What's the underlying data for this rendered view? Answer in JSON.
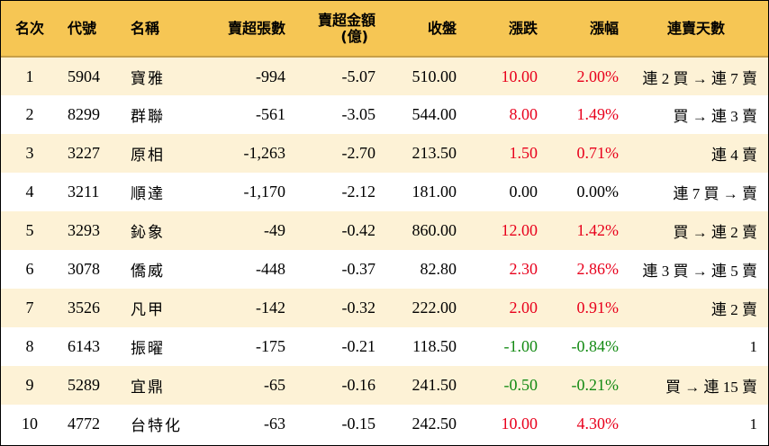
{
  "headers": {
    "rank": "名次",
    "code": "代號",
    "name": "名稱",
    "net_sell_lots": "賣超張數",
    "net_sell_amount_line1": "賣超金額",
    "net_sell_amount_line2": "(億)",
    "close": "收盤",
    "change": "漲跌",
    "change_pct": "漲幅",
    "streak": "連賣天數"
  },
  "rows": [
    {
      "rank": "1",
      "code": "5904",
      "name": "寶雅",
      "lots": "-994",
      "amount": "-5.07",
      "close": "510.00",
      "change": "10.00",
      "pct": "2.00%",
      "streak": "連 2 買 → 連 7 賣"
    },
    {
      "rank": "2",
      "code": "8299",
      "name": "群聯",
      "lots": "-561",
      "amount": "-3.05",
      "close": "544.00",
      "change": "8.00",
      "pct": "1.49%",
      "streak": "買 → 連 3 賣"
    },
    {
      "rank": "3",
      "code": "3227",
      "name": "原相",
      "lots": "-1,263",
      "amount": "-2.70",
      "close": "213.50",
      "change": "1.50",
      "pct": "0.71%",
      "streak": "連 4 賣"
    },
    {
      "rank": "4",
      "code": "3211",
      "name": "順達",
      "lots": "-1,170",
      "amount": "-2.12",
      "close": "181.00",
      "change": "0.00",
      "pct": "0.00%",
      "streak": "連 7 買 → 賣"
    },
    {
      "rank": "5",
      "code": "3293",
      "name": "鈊象",
      "lots": "-49",
      "amount": "-0.42",
      "close": "860.00",
      "change": "12.00",
      "pct": "1.42%",
      "streak": "買 → 連 2 賣"
    },
    {
      "rank": "6",
      "code": "3078",
      "name": "僑威",
      "lots": "-448",
      "amount": "-0.37",
      "close": "82.80",
      "change": "2.30",
      "pct": "2.86%",
      "streak": "連 3 買 → 連 5 賣"
    },
    {
      "rank": "7",
      "code": "3526",
      "name": "凡甲",
      "lots": "-142",
      "amount": "-0.32",
      "close": "222.00",
      "change": "2.00",
      "pct": "0.91%",
      "streak": "連 2 賣"
    },
    {
      "rank": "8",
      "code": "6143",
      "name": "振曜",
      "lots": "-175",
      "amount": "-0.21",
      "close": "118.50",
      "change": "-1.00",
      "pct": "-0.84%",
      "streak": "1"
    },
    {
      "rank": "9",
      "code": "5289",
      "name": "宜鼎",
      "lots": "-65",
      "amount": "-0.16",
      "close": "241.50",
      "change": "-0.50",
      "pct": "-0.21%",
      "streak": "買 → 連 15 賣"
    },
    {
      "rank": "10",
      "code": "4772",
      "name": "台特化",
      "lots": "-63",
      "amount": "-0.15",
      "close": "242.50",
      "change": "10.00",
      "pct": "4.30%",
      "streak": "1"
    }
  ],
  "colors": {
    "header_bg": "#f6c654",
    "odd_row_bg": "#fdf2d6",
    "even_row_bg": "#ffffff",
    "up": "#e8001c",
    "down": "#138a13",
    "flat": "#000000"
  }
}
